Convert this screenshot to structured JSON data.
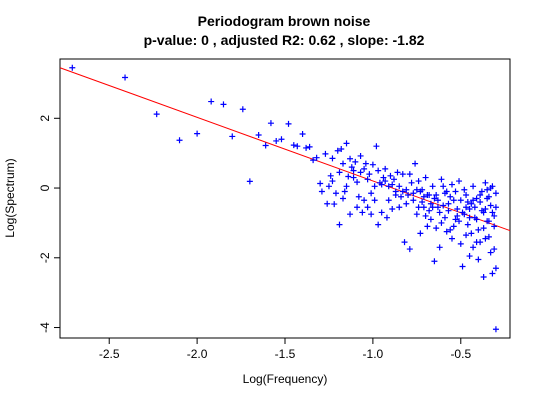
{
  "chart_data": {
    "type": "scatter",
    "title": "Periodogram brown noise",
    "subtitle": "p-value: 0 , adjusted R2: 0.62 , slope: -1.82",
    "xlabel": "Log(Frequency)",
    "ylabel": "Log(Spectrum)",
    "xlim": [
      -2.78,
      -0.22
    ],
    "ylim": [
      -4.3,
      3.7
    ],
    "x_ticks": [
      -2.5,
      -2.0,
      -1.5,
      -1.0,
      -0.5
    ],
    "x_tick_labels": [
      "-2.5",
      "-2.0",
      "-1.5",
      "-1.0",
      "-0.5"
    ],
    "y_ticks": [
      -4,
      -2,
      0,
      2
    ],
    "y_tick_labels": [
      "-4",
      "-2",
      "0",
      "2"
    ],
    "grid": false,
    "legend": "none",
    "point_color": "#0000ff",
    "line_color": "#ff0000",
    "regression_line": {
      "slope": -1.82,
      "points": [
        [
          -2.78,
          3.45
        ],
        [
          -0.22,
          -1.22
        ]
      ]
    },
    "series": [
      {
        "marker": "plus",
        "points": [
          [
            -2.71,
            3.45
          ],
          [
            -2.41,
            3.17
          ],
          [
            -2.23,
            2.12
          ],
          [
            -2.1,
            1.37
          ],
          [
            -2.0,
            1.56
          ],
          [
            -1.92,
            2.48
          ],
          [
            -1.85,
            2.4
          ],
          [
            -1.8,
            1.48
          ],
          [
            -1.74,
            2.26
          ],
          [
            -1.7,
            0.19
          ],
          [
            -1.65,
            1.52
          ],
          [
            -1.61,
            1.22
          ],
          [
            -1.58,
            1.86
          ],
          [
            -1.55,
            1.35
          ],
          [
            -1.52,
            1.4
          ],
          [
            -1.48,
            1.84
          ],
          [
            -1.45,
            1.23
          ],
          [
            -1.43,
            1.2
          ],
          [
            -1.4,
            1.55
          ],
          [
            -1.38,
            1.15
          ],
          [
            -1.36,
            1.18
          ],
          [
            -1.34,
            0.8
          ],
          [
            -1.32,
            0.87
          ],
          [
            -1.3,
            0.13
          ],
          [
            -1.29,
            -0.1
          ],
          [
            -1.27,
            0.98
          ],
          [
            -1.26,
            -0.45
          ],
          [
            -1.24,
            0.35
          ],
          [
            -1.23,
            0.85
          ],
          [
            -1.22,
            -0.46
          ],
          [
            -1.2,
            1.07
          ],
          [
            -1.19,
            -1.05
          ],
          [
            -1.18,
            1.12
          ],
          [
            -1.17,
            0.7
          ],
          [
            -1.16,
            -0.1
          ],
          [
            -1.15,
            1.28
          ],
          [
            -1.14,
            0.33
          ],
          [
            -1.13,
            0.84
          ],
          [
            -1.12,
            0.6
          ],
          [
            -1.11,
            0.3
          ],
          [
            -1.1,
            0.75
          ],
          [
            -1.09,
            0.17
          ],
          [
            -1.08,
            -0.25
          ],
          [
            -1.07,
            0.92
          ],
          [
            -1.06,
            -0.7
          ],
          [
            -1.05,
            0.55
          ],
          [
            -1.04,
            0.7
          ],
          [
            -1.03,
            -0.55
          ],
          [
            -1.02,
            0.4
          ],
          [
            -1.01,
            -0.15
          ],
          [
            -1.0,
            0.67
          ],
          [
            -0.99,
            -0.35
          ],
          [
            -0.98,
            1.2
          ],
          [
            -0.97,
            -1.05
          ],
          [
            -0.96,
            0.15
          ],
          [
            -0.95,
            -0.7
          ],
          [
            -0.94,
            0.3
          ],
          [
            -0.93,
            0.2
          ],
          [
            -0.92,
            -0.85
          ],
          [
            -0.91,
            0.05
          ],
          [
            -0.9,
            0.35
          ],
          [
            -0.89,
            0.1
          ],
          [
            -0.88,
            0.25
          ],
          [
            -0.87,
            -0.1
          ],
          [
            -0.86,
            0.45
          ],
          [
            -0.85,
            0.05
          ],
          [
            -0.84,
            -0.25
          ],
          [
            -0.83,
            0.4
          ],
          [
            -0.82,
            -1.55
          ],
          [
            -0.81,
            -0.05
          ],
          [
            -0.8,
            -0.2
          ],
          [
            -0.79,
            -1.75
          ],
          [
            -0.78,
            0.15
          ],
          [
            -0.77,
            -0.35
          ],
          [
            -0.76,
            0.7
          ],
          [
            -0.75,
            -0.05
          ],
          [
            -0.74,
            0.2
          ],
          [
            -0.73,
            -1.3
          ],
          [
            -0.72,
            -0.4
          ],
          [
            -0.71,
            -0.55
          ],
          [
            -0.7,
            0.3
          ],
          [
            -0.69,
            -0.2
          ],
          [
            -0.68,
            -0.65
          ],
          [
            -0.67,
            -0.9
          ],
          [
            -0.66,
            0.05
          ],
          [
            -0.65,
            -2.1
          ],
          [
            -0.64,
            -0.2
          ],
          [
            -0.63,
            -0.35
          ],
          [
            -0.62,
            -1.7
          ],
          [
            -0.61,
            0.25
          ],
          [
            -0.6,
            -0.5
          ],
          [
            -0.59,
            -0.85
          ],
          [
            -0.58,
            -0.1
          ],
          [
            -0.57,
            -0.45
          ],
          [
            -0.56,
            -1.2
          ],
          [
            -0.55,
            0.1
          ],
          [
            -0.54,
            -0.35
          ],
          [
            -0.53,
            -0.9
          ],
          [
            -0.52,
            -0.6
          ],
          [
            -0.51,
            0.2
          ],
          [
            -0.5,
            -0.35
          ],
          [
            -0.49,
            -2.25
          ],
          [
            -0.48,
            -0.75
          ],
          [
            -0.47,
            -0.2
          ],
          [
            -0.46,
            -1.05
          ],
          [
            -0.45,
            -1.95
          ],
          [
            -0.44,
            -0.45
          ],
          [
            -0.43,
            0.05
          ],
          [
            -0.42,
            -0.85
          ],
          [
            -0.41,
            -0.3
          ],
          [
            -0.4,
            -2.05
          ],
          [
            -0.39,
            -1.55
          ],
          [
            -0.38,
            -0.65
          ],
          [
            -0.37,
            -2.55
          ],
          [
            -0.36,
            0.15
          ],
          [
            -0.35,
            -0.95
          ],
          [
            -0.34,
            -1.4
          ],
          [
            -0.33,
            -0.5
          ],
          [
            -0.32,
            -2.45
          ],
          [
            -0.31,
            -1.75
          ],
          [
            -0.3,
            -0.15
          ],
          [
            -0.3,
            -2.3
          ],
          [
            -0.31,
            -0.8
          ],
          [
            -0.33,
            0.0
          ],
          [
            -0.35,
            -0.3
          ],
          [
            -0.37,
            -1.15
          ],
          [
            -0.39,
            -0.4
          ],
          [
            -0.41,
            -0.9
          ],
          [
            -0.43,
            -1.7
          ],
          [
            -0.45,
            -0.6
          ],
          [
            -0.47,
            -1.35
          ],
          [
            -0.49,
            -0.7
          ],
          [
            -0.51,
            -0.95
          ],
          [
            -0.53,
            -0.1
          ],
          [
            -0.55,
            -1.45
          ],
          [
            -0.57,
            -0.65
          ],
          [
            -0.59,
            -0.15
          ],
          [
            -0.61,
            -1.0
          ],
          [
            -0.63,
            -0.55
          ],
          [
            -0.65,
            -0.3
          ],
          [
            -0.67,
            -0.45
          ],
          [
            -0.69,
            -1.1
          ],
          [
            -0.71,
            -0.25
          ],
          [
            -0.73,
            -0.1
          ],
          [
            -0.75,
            -0.75
          ],
          [
            -0.77,
            -0.15
          ],
          [
            -0.79,
            0.4
          ],
          [
            -0.81,
            -0.45
          ],
          [
            -0.83,
            -0.1
          ],
          [
            -0.85,
            -0.55
          ],
          [
            -0.87,
            -0.2
          ],
          [
            -0.89,
            -0.6
          ],
          [
            -0.91,
            -0.35
          ],
          [
            -0.93,
            0.55
          ],
          [
            -0.95,
            0.1
          ],
          [
            -0.97,
            0.5
          ],
          [
            -0.99,
            0.05
          ],
          [
            -1.01,
            -0.75
          ],
          [
            -1.03,
            0.25
          ],
          [
            -1.05,
            -0.35
          ],
          [
            -1.07,
            0.45
          ],
          [
            -1.09,
            -0.55
          ],
          [
            -1.11,
            0.5
          ],
          [
            -1.13,
            -0.75
          ],
          [
            -1.15,
            0.05
          ],
          [
            -1.17,
            -0.3
          ],
          [
            -1.19,
            0.45
          ],
          [
            -1.21,
            -0.15
          ],
          [
            -1.23,
            0.2
          ],
          [
            -1.25,
            0.05
          ],
          [
            -0.36,
            -0.6
          ],
          [
            -0.38,
            -0.1
          ],
          [
            -0.4,
            -1.2
          ],
          [
            -0.42,
            -0.55
          ],
          [
            -0.44,
            -1.3
          ],
          [
            -0.46,
            -0.4
          ],
          [
            -0.48,
            -0.05
          ],
          [
            -0.5,
            -1.6
          ],
          [
            -0.52,
            -0.8
          ],
          [
            -0.54,
            -1.1
          ],
          [
            -0.56,
            -0.25
          ],
          [
            -0.58,
            -1.25
          ],
          [
            -0.6,
            0.05
          ],
          [
            -0.62,
            -0.7
          ],
          [
            -0.64,
            -1.15
          ],
          [
            -0.66,
            -0.55
          ],
          [
            -0.68,
            -0.2
          ],
          [
            -0.7,
            -0.8
          ],
          [
            -0.72,
            -0.05
          ],
          [
            -0.74,
            -0.55
          ],
          [
            -0.32,
            -0.7
          ],
          [
            -0.34,
            -0.25
          ],
          [
            -0.36,
            -1.45
          ],
          [
            -0.31,
            -1.1
          ],
          [
            -0.33,
            -1.85
          ],
          [
            -0.35,
            -0.05
          ],
          [
            -0.3,
            -0.55
          ],
          [
            -0.32,
            0.05
          ],
          [
            -0.34,
            -0.95
          ],
          [
            -0.37,
            -0.7
          ],
          [
            -0.39,
            -0.2
          ],
          [
            -0.41,
            -1.55
          ],
          [
            -0.43,
            -0.35
          ],
          [
            -0.45,
            -0.85
          ],
          [
            -0.47,
            -0.55
          ],
          [
            -0.3,
            -4.05
          ]
        ]
      }
    ]
  }
}
